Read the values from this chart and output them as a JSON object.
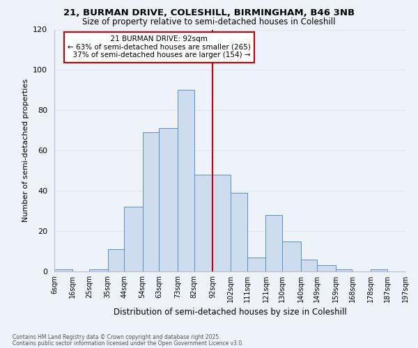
{
  "title1": "21, BURMAN DRIVE, COLESHILL, BIRMINGHAM, B46 3NB",
  "title2": "Size of property relative to semi-detached houses in Coleshill",
  "xlabel": "Distribution of semi-detached houses by size in Coleshill",
  "ylabel": "Number of semi-detached properties",
  "bins": [
    6,
    16,
    25,
    35,
    44,
    54,
    63,
    73,
    82,
    92,
    102,
    111,
    121,
    130,
    140,
    149,
    159,
    168,
    178,
    187,
    197
  ],
  "counts": [
    1,
    0,
    1,
    11,
    32,
    69,
    71,
    90,
    48,
    48,
    39,
    7,
    28,
    15,
    6,
    3,
    1,
    0,
    1,
    0
  ],
  "bin_labels": [
    "6sqm",
    "16sqm",
    "25sqm",
    "35sqm",
    "44sqm",
    "54sqm",
    "63sqm",
    "73sqm",
    "82sqm",
    "92sqm",
    "102sqm",
    "111sqm",
    "121sqm",
    "130sqm",
    "140sqm",
    "149sqm",
    "159sqm",
    "168sqm",
    "178sqm",
    "187sqm",
    "197sqm"
  ],
  "bar_color": "#cddcee",
  "bar_edge_color": "#5b8dc8",
  "property_size": 92,
  "property_label": "21 BURMAN DRIVE: 92sqm",
  "pct_smaller": 63,
  "count_smaller": 265,
  "pct_larger": 37,
  "count_larger": 154,
  "vline_color": "#cc0000",
  "ylim": [
    0,
    120
  ],
  "yticks": [
    0,
    20,
    40,
    60,
    80,
    100,
    120
  ],
  "grid_color": "#dde5f0",
  "background_color": "#eef2f9",
  "footnote1": "Contains HM Land Registry data © Crown copyright and database right 2025.",
  "footnote2": "Contains public sector information licensed under the Open Government Licence v3.0."
}
